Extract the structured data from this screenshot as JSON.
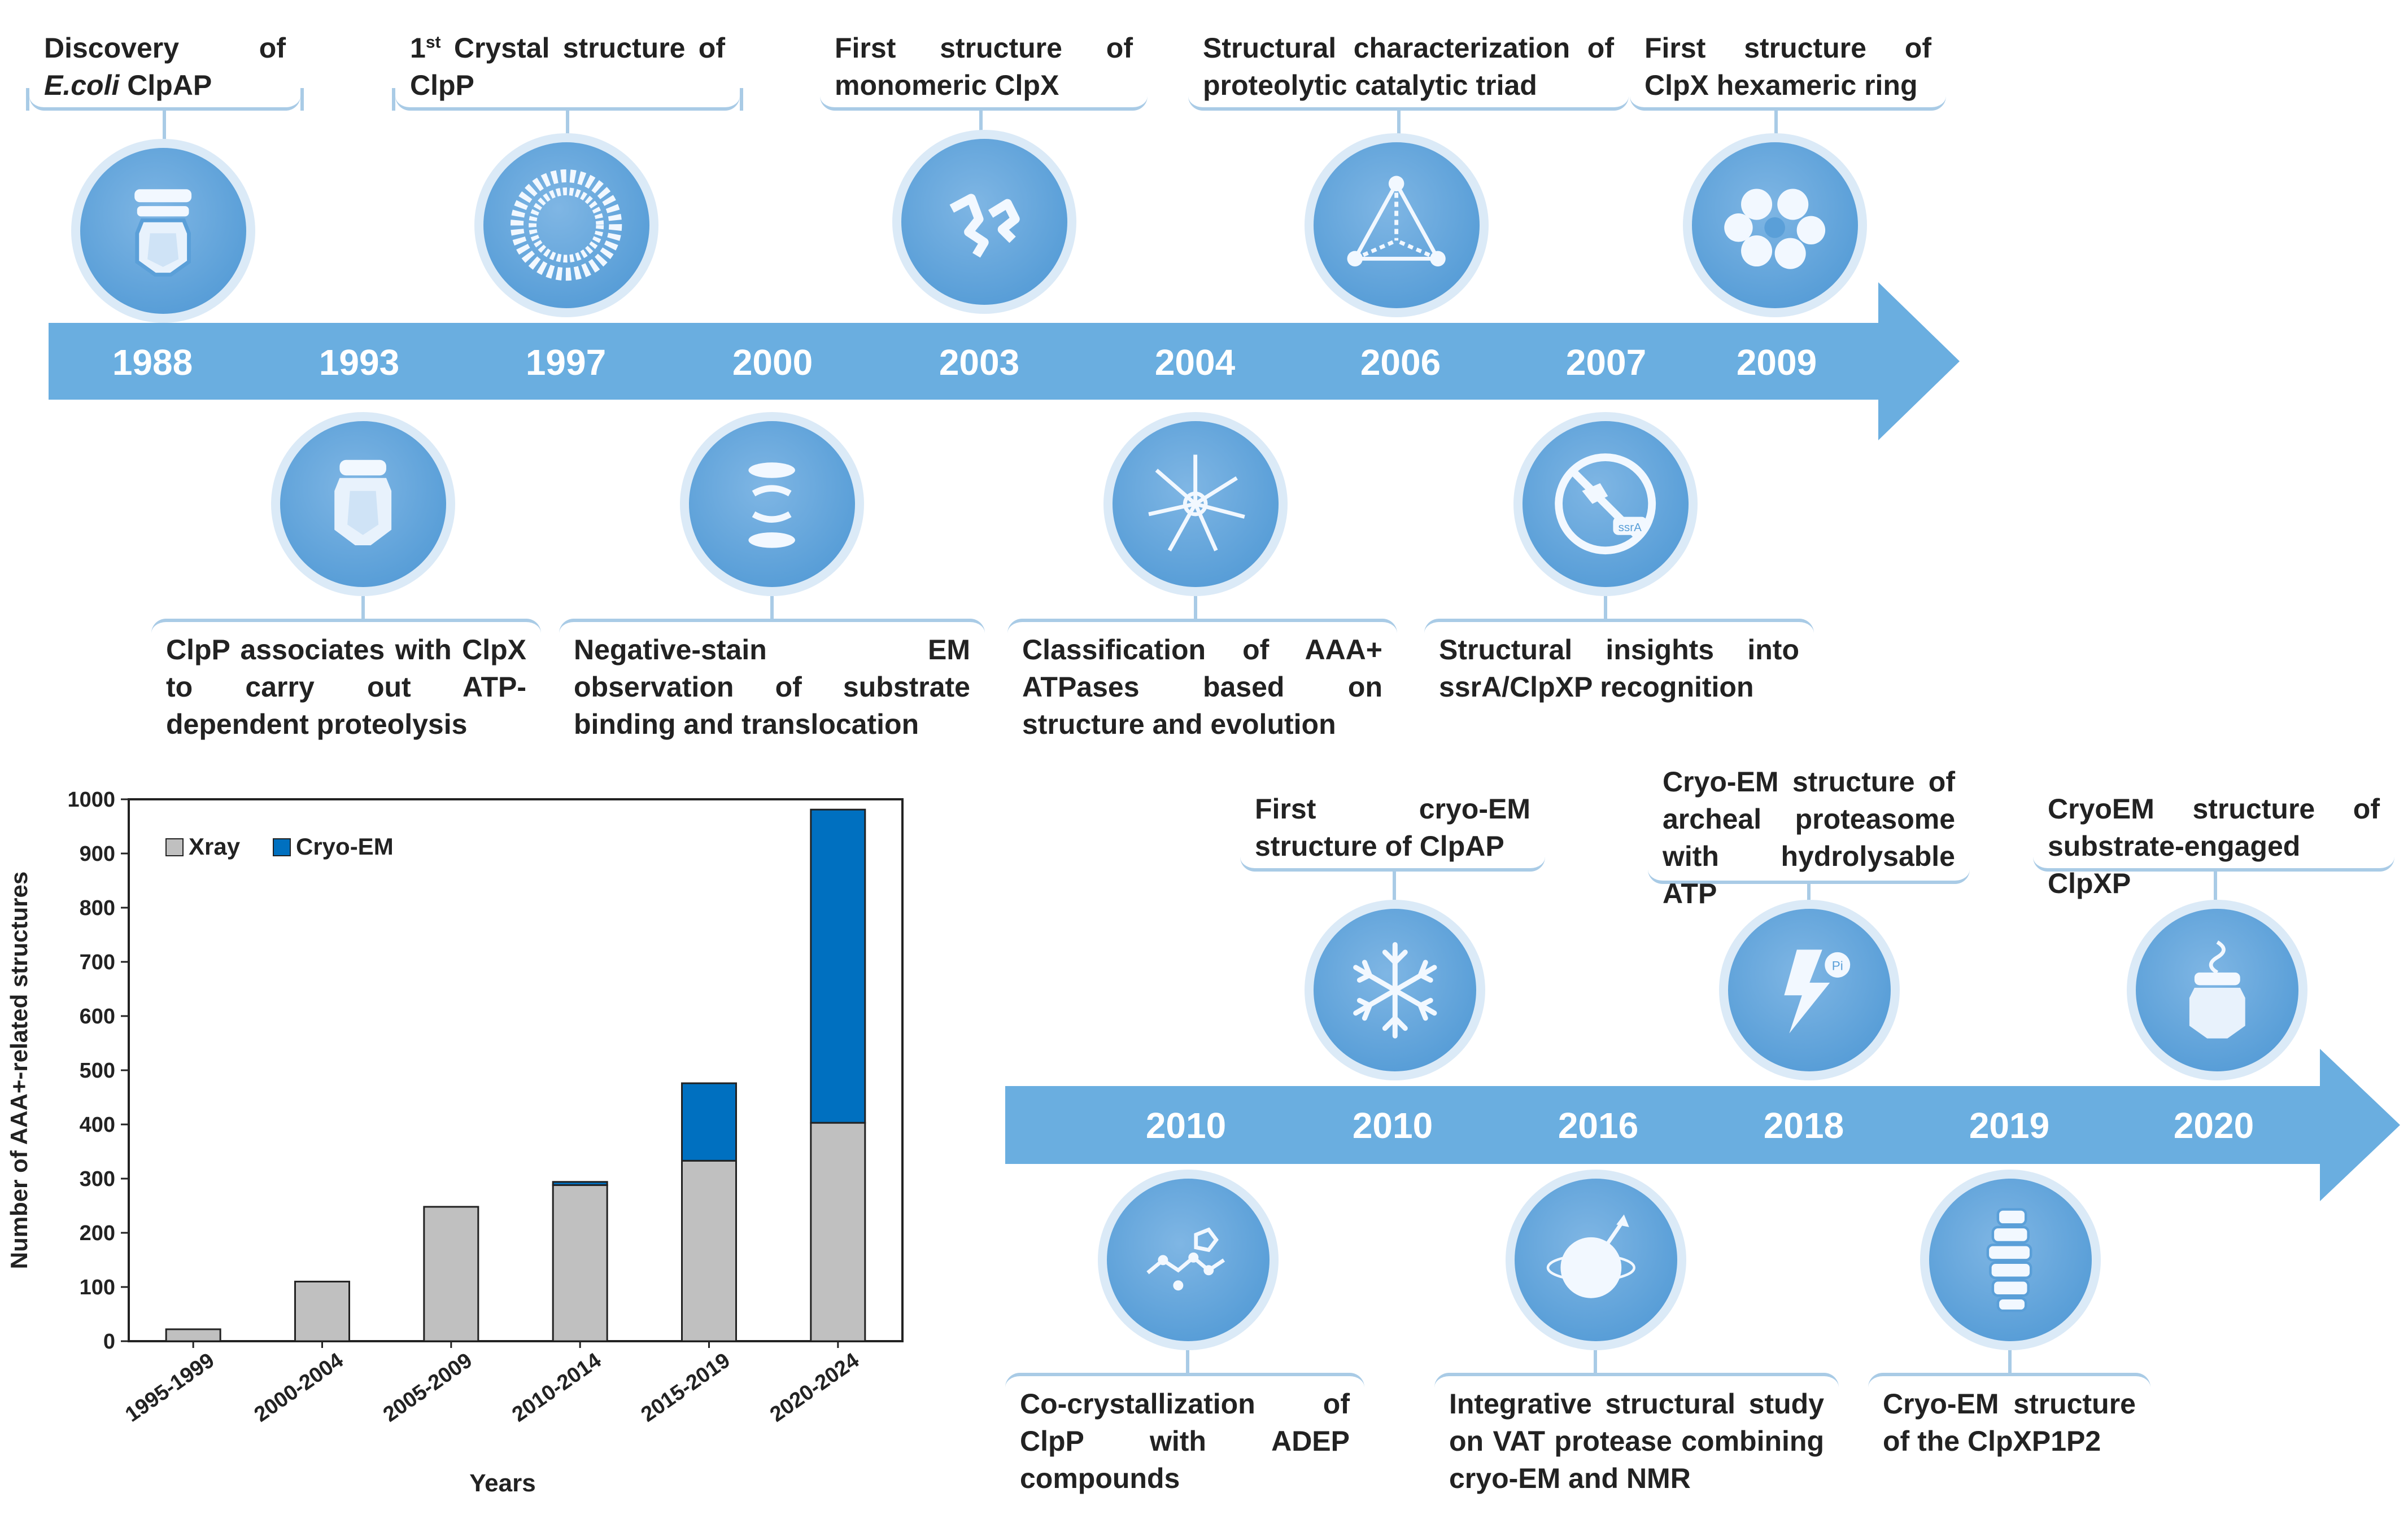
{
  "colors": {
    "timeline": "#6aaee0",
    "card_border": "#a9cbe6",
    "xray": "#c0c0c0",
    "cryoem": "#0070c0"
  },
  "top_timeline": {
    "years": [
      "1988",
      "1993",
      "1997",
      "2000",
      "2003",
      "2004",
      "2006",
      "2007",
      "2009"
    ],
    "above": [
      {
        "text_a": "Discovery of ",
        "text_b": "E.coli",
        "text_c": " ClpAP",
        "icon": "clpap-icon"
      },
      {
        "sup": "st",
        "text_a": "1",
        "text_c": " Crystal structure of ClpP",
        "icon": "clpp-crystal-icon"
      },
      {
        "text": "First structure of monomeric ClpX",
        "icon": "clpx-monomer-icon"
      },
      {
        "text": "Structural characterization of proteolytic catalytic triad",
        "icon": "catalytic-triad-icon"
      },
      {
        "text": "First structure of ClpX hexameric ring",
        "icon": "clpx-hexamer-icon"
      }
    ],
    "below": [
      {
        "text": "ClpP associates with ClpX to carry out ATP-dependent proteolysis",
        "icon": "clpxp-complex-icon"
      },
      {
        "text": "Negative-stain EM observation of substrate binding and translocation",
        "icon": "negative-stain-icon"
      },
      {
        "text": "Classification of AAA+ ATPases based on structure and evolution",
        "icon": "phylogeny-icon"
      },
      {
        "text": "Structural insights into ssrA/ClpXP recognition",
        "icon": "ssra-icon",
        "badge": "ssrA"
      }
    ]
  },
  "bottom_timeline": {
    "years": [
      "2010",
      "2010",
      "2016",
      "2018",
      "2019",
      "2020"
    ],
    "above": [
      {
        "text": "First cryo-EM structure of ClpAP",
        "icon": "snowflake-icon"
      },
      {
        "text": "Cryo-EM structure of archeal proteasome with hydrolysable ATP",
        "icon": "lightning-icon",
        "badge": "Pi"
      },
      {
        "text": "CryoEM structure of substrate-engaged ClpXP",
        "icon": "substrate-engaged-icon"
      }
    ],
    "below": [
      {
        "text": "Co-crystallization of ClpP with ADEP compounds",
        "icon": "adep-molecule-icon"
      },
      {
        "text": "Integrative structural study on VAT protease combining cryo-EM and NMR",
        "icon": "nmr-sphere-icon"
      },
      {
        "text": "Cryo-EM structure of the ClpXP1P2",
        "icon": "clpxp1p2-icon"
      }
    ]
  },
  "chart_data": {
    "type": "bar",
    "stacked": true,
    "categories": [
      "1995-1999",
      "2000-2004",
      "2005-2009",
      "2010-2014",
      "2015-2019",
      "2020-2024"
    ],
    "series": [
      {
        "name": "Xray",
        "values": [
          22,
          110,
          248,
          288,
          333,
          403
        ]
      },
      {
        "name": "Cryo-EM",
        "values": [
          0,
          0,
          0,
          6,
          143,
          578
        ]
      }
    ],
    "xlabel": "Years",
    "ylabel": "Number of AAA+-related structures",
    "ylim": [
      0,
      1000
    ],
    "yticks": [
      0,
      100,
      200,
      300,
      400,
      500,
      600,
      700,
      800,
      900,
      1000
    ],
    "legend": "top-left"
  }
}
